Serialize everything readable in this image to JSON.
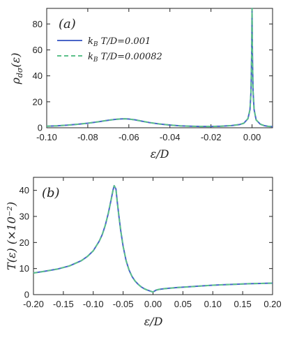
{
  "colors": {
    "series_solid": "#4a66c8",
    "series_dashed": "#5cc08a",
    "axis": "#222222"
  },
  "chart_data": [
    {
      "type": "line",
      "panel_tag": "(a)",
      "xlabel": "ε/D",
      "ylabel": "ρdσ(ε)",
      "xlim": [
        -0.1,
        0.01
      ],
      "ylim": [
        0,
        92
      ],
      "xticks": [
        -0.1,
        -0.08,
        -0.06,
        -0.04,
        -0.02,
        0.0
      ],
      "xtick_labels": [
        "-0.10",
        "-0.08",
        "-0.06",
        "-0.04",
        "-0.02",
        "0.00"
      ],
      "yticks": [
        0,
        20,
        40,
        60,
        80
      ],
      "ytick_labels": [
        "0",
        "20",
        "40",
        "60",
        "80"
      ],
      "legend": "top-left",
      "series": [
        {
          "name": "kBT/D=0.001",
          "style": "solid",
          "x": [
            -0.1,
            -0.095,
            -0.09,
            -0.085,
            -0.08,
            -0.075,
            -0.07,
            -0.067,
            -0.064,
            -0.062,
            -0.06,
            -0.057,
            -0.054,
            -0.05,
            -0.045,
            -0.04,
            -0.035,
            -0.03,
            -0.025,
            -0.02,
            -0.015,
            -0.01,
            -0.006,
            -0.004,
            -0.002,
            -0.001,
            -0.0005,
            -0.0002,
            0.0,
            0.0002,
            0.0005,
            0.001,
            0.002,
            0.004,
            0.006,
            0.008,
            0.01
          ],
          "y": [
            1.2,
            1.5,
            2.0,
            2.7,
            3.5,
            4.6,
            5.8,
            6.4,
            6.8,
            6.9,
            6.7,
            6.1,
            5.2,
            4.0,
            2.9,
            2.1,
            1.5,
            1.2,
            1.0,
            1.0,
            1.2,
            1.7,
            2.5,
            3.5,
            7.0,
            14.0,
            28.0,
            55.0,
            92.0,
            55.0,
            28.0,
            14.0,
            6.0,
            2.8,
            1.6,
            1.1,
            0.9
          ]
        },
        {
          "name": "kBT/D=0.00082",
          "style": "dashed",
          "x": [
            -0.1,
            -0.095,
            -0.09,
            -0.085,
            -0.08,
            -0.075,
            -0.07,
            -0.067,
            -0.064,
            -0.062,
            -0.06,
            -0.057,
            -0.054,
            -0.05,
            -0.045,
            -0.04,
            -0.035,
            -0.03,
            -0.025,
            -0.02,
            -0.015,
            -0.01,
            -0.006,
            -0.004,
            -0.002,
            -0.001,
            -0.0005,
            -0.0002,
            0.0,
            0.0002,
            0.0005,
            0.001,
            0.002,
            0.004,
            0.006,
            0.008,
            0.01
          ],
          "y": [
            1.2,
            1.5,
            2.0,
            2.7,
            3.5,
            4.6,
            5.8,
            6.4,
            6.8,
            6.9,
            6.7,
            6.1,
            5.2,
            4.0,
            2.9,
            2.1,
            1.5,
            1.2,
            1.0,
            1.0,
            1.2,
            1.7,
            2.5,
            3.5,
            7.0,
            14.0,
            28.0,
            55.0,
            92.0,
            55.0,
            28.0,
            14.0,
            6.0,
            2.8,
            1.6,
            1.1,
            0.9
          ]
        }
      ]
    },
    {
      "type": "line",
      "panel_tag": "(b)",
      "xlabel": "ε/D",
      "ylabel": "T(ε) (×10⁻²)",
      "xlim": [
        -0.2,
        0.2
      ],
      "ylim": [
        0,
        45
      ],
      "xticks": [
        -0.2,
        -0.15,
        -0.1,
        -0.05,
        0.0,
        0.05,
        0.1,
        0.15,
        0.2
      ],
      "xtick_labels": [
        "-0.20",
        "-0.15",
        "-0.10",
        "-0.05",
        "0.00",
        "0.05",
        "0.10",
        "0.15",
        "0.20"
      ],
      "yticks": [
        0,
        10,
        20,
        30,
        40
      ],
      "ytick_labels": [
        "0",
        "10",
        "20",
        "30",
        "40"
      ],
      "series": [
        {
          "style": "solid",
          "x": [
            -0.2,
            -0.18,
            -0.16,
            -0.14,
            -0.12,
            -0.11,
            -0.1,
            -0.09,
            -0.085,
            -0.08,
            -0.075,
            -0.07,
            -0.067,
            -0.065,
            -0.062,
            -0.06,
            -0.057,
            -0.054,
            -0.05,
            -0.045,
            -0.04,
            -0.035,
            -0.03,
            -0.025,
            -0.02,
            -0.015,
            -0.01,
            -0.005,
            0.0,
            0.005,
            0.01,
            0.02,
            0.04,
            0.06,
            0.08,
            0.1,
            0.12,
            0.14,
            0.16,
            0.18,
            0.2
          ],
          "y": [
            8.3,
            9.0,
            9.8,
            11.0,
            13.0,
            14.6,
            16.8,
            20.5,
            23.0,
            26.5,
            31.0,
            36.5,
            40.0,
            41.8,
            40.5,
            36.0,
            30.0,
            24.5,
            18.5,
            13.0,
            9.4,
            6.9,
            5.2,
            4.0,
            3.0,
            2.3,
            1.8,
            1.4,
            1.0,
            1.7,
            2.0,
            2.3,
            2.7,
            3.0,
            3.3,
            3.6,
            3.8,
            4.0,
            4.2,
            4.3,
            4.4
          ]
        },
        {
          "style": "dashed",
          "x": [
            -0.2,
            -0.18,
            -0.16,
            -0.14,
            -0.12,
            -0.11,
            -0.1,
            -0.09,
            -0.085,
            -0.08,
            -0.075,
            -0.07,
            -0.067,
            -0.065,
            -0.062,
            -0.06,
            -0.057,
            -0.054,
            -0.05,
            -0.045,
            -0.04,
            -0.035,
            -0.03,
            -0.025,
            -0.02,
            -0.015,
            -0.01,
            -0.005,
            0.0,
            0.005,
            0.01,
            0.02,
            0.04,
            0.06,
            0.08,
            0.1,
            0.12,
            0.14,
            0.16,
            0.18,
            0.2
          ],
          "y": [
            8.3,
            9.0,
            9.8,
            11.0,
            13.0,
            14.6,
            16.8,
            20.5,
            23.0,
            26.5,
            31.0,
            36.5,
            40.0,
            41.8,
            40.5,
            36.0,
            30.0,
            24.5,
            18.5,
            13.0,
            9.4,
            6.9,
            5.2,
            4.0,
            3.0,
            2.3,
            1.8,
            1.4,
            1.0,
            1.7,
            2.0,
            2.3,
            2.7,
            3.0,
            3.3,
            3.6,
            3.8,
            4.0,
            4.2,
            4.3,
            4.4
          ]
        }
      ]
    }
  ]
}
